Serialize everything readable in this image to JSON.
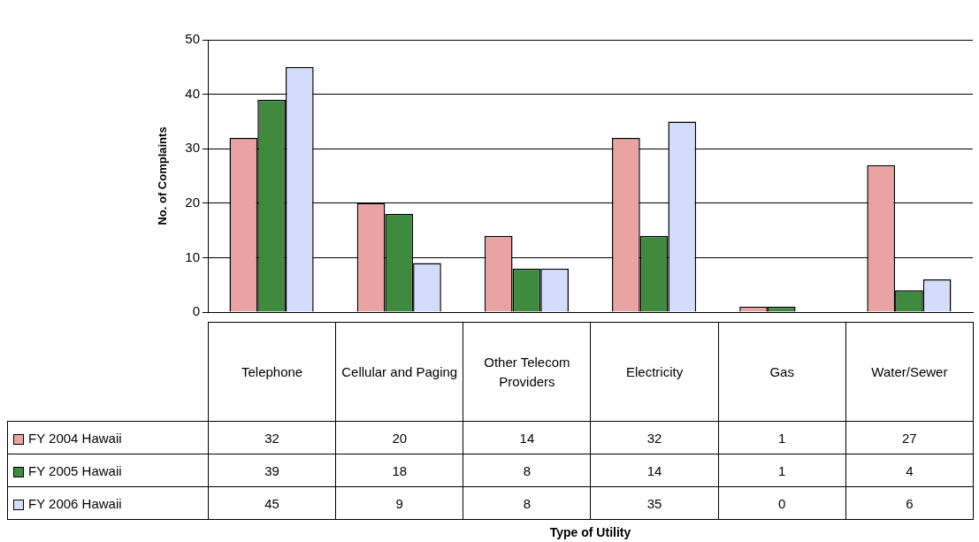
{
  "chart_data": {
    "type": "bar",
    "annotations": [
      "Type of Utility"
    ],
    "ylabel": "No. of Complaints",
    "categories": [
      "Telephone",
      "Cellular and Paging",
      "Other Telecom Providers",
      "Electricity",
      "Gas",
      "Water/Sewer"
    ],
    "series": [
      {
        "name": "FY 2004 Hawaii",
        "color": "#e9a3a3",
        "values": [
          32,
          20,
          14,
          32,
          1,
          27
        ]
      },
      {
        "name": "FY 2005 Hawaii",
        "color": "#3f8a3f",
        "values": [
          39,
          18,
          8,
          14,
          1,
          4
        ]
      },
      {
        "name": "FY 2006 Hawaii",
        "color": "#d4dcfb",
        "values": [
          45,
          9,
          8,
          35,
          0,
          6
        ]
      }
    ],
    "ylim": [
      0,
      50
    ],
    "yticks": [
      0,
      10,
      20,
      30,
      40,
      50
    ],
    "grid": "y",
    "legend": "bottom left",
    "data_labels": true
  }
}
